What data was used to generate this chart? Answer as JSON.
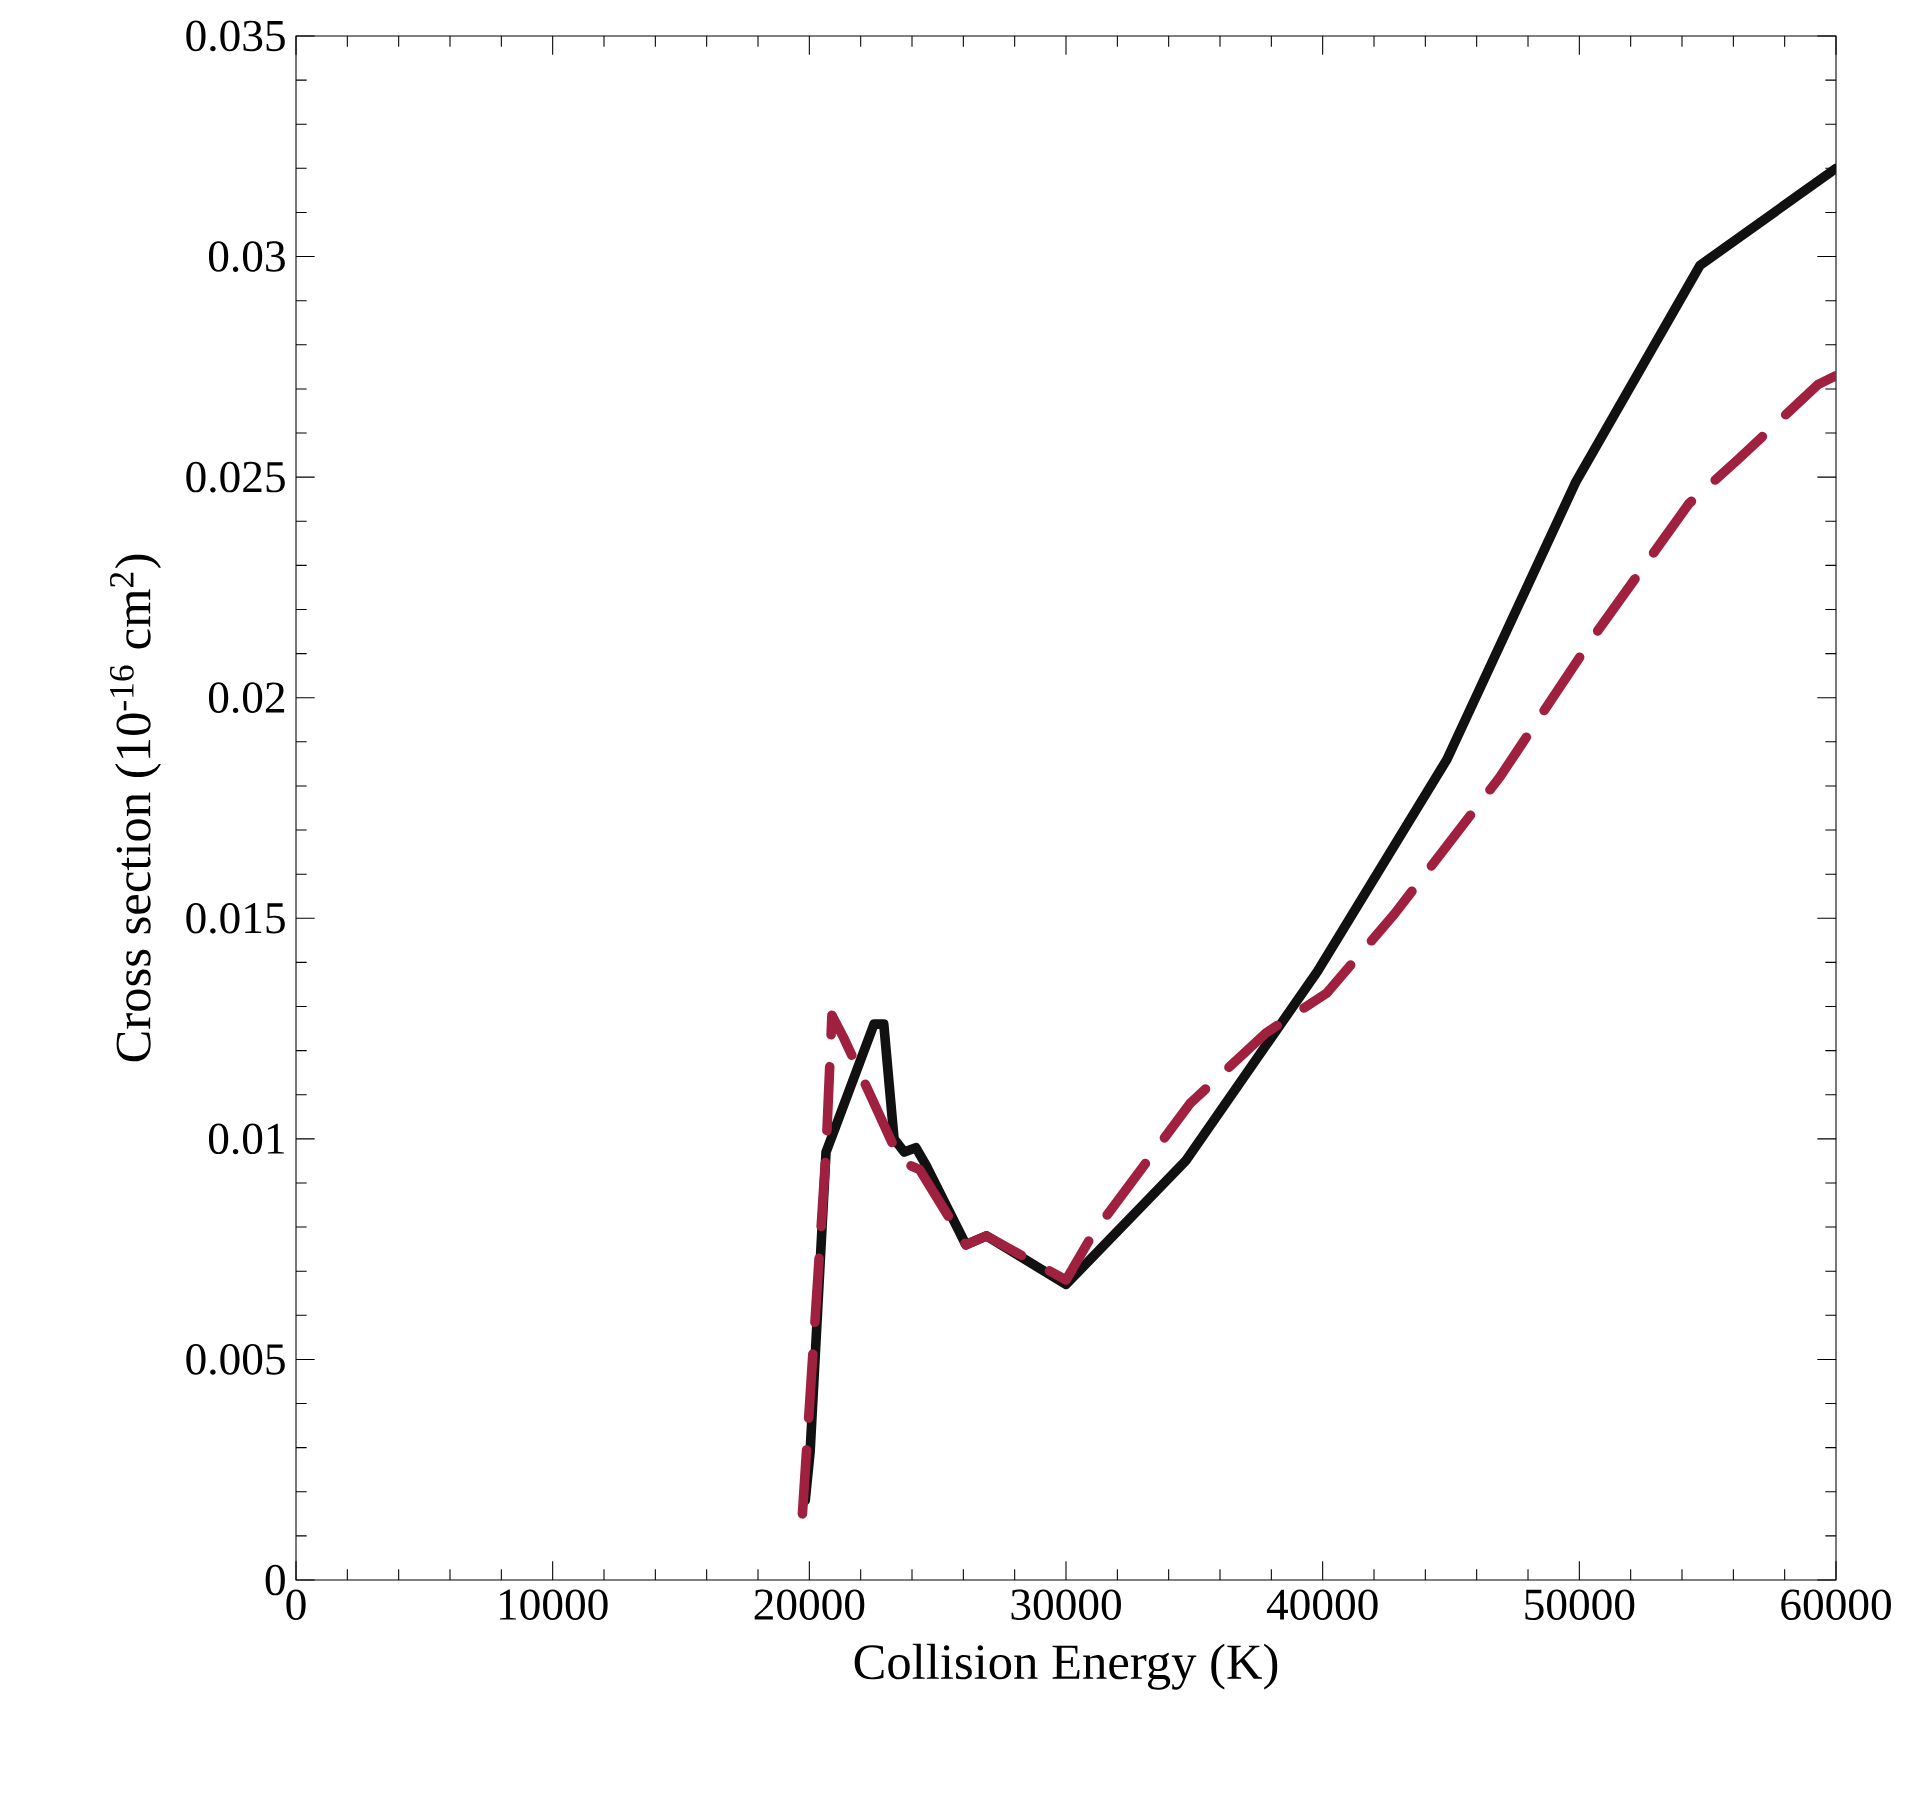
{
  "chart_data": {
    "type": "line",
    "xlabel": "Collision Energy (K)",
    "ylabel": "Cross section (10$^{-16}$ cm$^{2}$)",
    "xlim": [
      0,
      60000
    ],
    "ylim": [
      0,
      0.035
    ],
    "xticks": [
      0,
      10000,
      20000,
      30000,
      40000,
      50000,
      60000
    ],
    "yticks": [
      0,
      0.005,
      0.01,
      0.015,
      0.02,
      0.025,
      0.03,
      0.035
    ],
    "series": [
      {
        "color": "#111111",
        "line_style": "solid",
        "x": [
          19840,
          20030,
          20650,
          21040,
          22520,
          22900,
          23300,
          23700,
          24150,
          24550,
          26100,
          26900,
          30000,
          34660,
          39800,
          44840,
          49870,
          54700,
          60000
        ],
        "values": [
          0.0018,
          0.0029,
          0.0097,
          0.0103,
          0.0126,
          0.0126,
          0.01,
          0.0097,
          0.0098,
          0.0094,
          0.0076,
          0.0078,
          0.0067,
          0.0095,
          0.0138,
          0.0186,
          0.0249,
          0.0298,
          0.032
        ]
      },
      {
        "color": "#a0203f",
        "line_style": "dashed",
        "x": [
          19730,
          20650,
          20880,
          21330,
          22370,
          23550,
          24300,
          26100,
          26900,
          30000,
          31000,
          34830,
          37790,
          40150,
          42800,
          46900,
          50450,
          54270,
          56180,
          59300,
          60000
        ],
        "values": [
          0.0015,
          0.0097,
          0.0128,
          0.0123,
          0.011,
          0.0095,
          0.0093,
          0.0076,
          0.0078,
          0.0068,
          0.0078,
          0.0108,
          0.0124,
          0.0133,
          0.0151,
          0.0182,
          0.0213,
          0.0244,
          0.0254,
          0.0271,
          0.0273
        ]
      }
    ]
  }
}
